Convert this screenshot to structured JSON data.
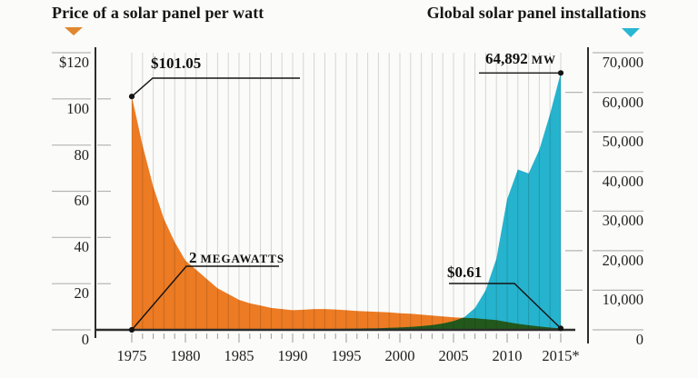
{
  "header": {
    "left_title": "Price of a solar panel per watt",
    "right_title": "Global solar panel installations"
  },
  "legend": {
    "price_marker_icon": "orange-down-triangle",
    "installs_marker_icon": "teal-down-triangle"
  },
  "colors": {
    "price_area": "#ec7b23",
    "installs_area": "#25b6d3",
    "grid": "#d8d8d8",
    "axis": "#2d2d2d",
    "tick": "#b5b5b5",
    "annotation": "#141414",
    "text": "#1f1f1f",
    "background": "#fbfbf9"
  },
  "chart_data": {
    "type": "area",
    "title_left": "Price of a solar panel per watt",
    "title_right": "Global solar panel installations",
    "x": [
      1975,
      1976,
      1977,
      1978,
      1979,
      1980,
      1981,
      1982,
      1983,
      1984,
      1985,
      1986,
      1987,
      1988,
      1989,
      1990,
      1991,
      1992,
      1993,
      1994,
      1995,
      1996,
      1997,
      1998,
      1999,
      2000,
      2001,
      2002,
      2003,
      2004,
      2005,
      2006,
      2007,
      2008,
      2009,
      2010,
      2011,
      2012,
      2013,
      2014,
      2015
    ],
    "series": [
      {
        "name": "Price of a solar panel per watt ($ per watt)",
        "axis": "left",
        "color": "#ec7b23",
        "values": [
          101.05,
          80,
          62,
          48,
          38,
          30,
          26,
          22,
          18,
          15.5,
          13,
          11.5,
          10.5,
          9.5,
          9,
          8.5,
          8.7,
          9,
          9,
          8.8,
          8.5,
          8.2,
          8,
          7.8,
          7.6,
          7.2,
          7,
          6.6,
          6.2,
          5.8,
          5.4,
          5.2,
          5,
          4.6,
          4.2,
          3.4,
          2.6,
          2,
          1.5,
          1,
          0.61
        ]
      },
      {
        "name": "Global solar panel installations (MW)",
        "axis": "right",
        "color": "#25b6d3",
        "values": [
          2,
          3,
          5,
          8,
          12,
          18,
          25,
          35,
          45,
          55,
          65,
          75,
          90,
          105,
          120,
          140,
          160,
          180,
          205,
          235,
          270,
          310,
          360,
          420,
          500,
          600,
          750,
          950,
          1200,
          1600,
          2200,
          3200,
          5500,
          10000,
          18000,
          33000,
          40500,
          39500,
          45500,
          54500,
          64892
        ]
      }
    ],
    "left_axis": {
      "range": [
        0,
        120
      ],
      "tick_values": [
        120,
        100,
        80,
        60,
        40,
        20,
        0
      ],
      "tick_labels": [
        "$120",
        "100",
        "80",
        "60",
        "40",
        "20",
        "0"
      ]
    },
    "right_axis": {
      "range": [
        0,
        70000
      ],
      "tick_values": [
        70000,
        60000,
        50000,
        40000,
        30000,
        20000,
        10000,
        0
      ],
      "tick_labels": [
        "70,000",
        "60,000",
        "50,000",
        "40,000",
        "30,000",
        "20,000",
        "10,000",
        "0"
      ]
    },
    "x_axis": {
      "tick_values": [
        1975,
        1980,
        1985,
        1990,
        1995,
        2000,
        2005,
        2010,
        2015
      ],
      "tick_labels": [
        "1975",
        "1980",
        "1985",
        "1990",
        "1995",
        "2000",
        "2005",
        "2010",
        "2015*"
      ]
    },
    "grid": "vertical-line-per-year",
    "legend_position": "top",
    "annotations": [
      {
        "id": "price-1975",
        "text": "$101.05",
        "series": "price",
        "year": 1975,
        "value": 101.05
      },
      {
        "id": "installs-2015",
        "value_text": "64,892",
        "unit": "MW",
        "series": "installations",
        "year": 2015,
        "value": 64892
      },
      {
        "id": "installs-1975",
        "value_text": "2",
        "unit": "MEGAWATTS",
        "series": "installations",
        "year": 1975,
        "value": 2
      },
      {
        "id": "price-2015",
        "text": "$0.61",
        "series": "price",
        "year": 2015,
        "value": 0.61
      }
    ]
  }
}
